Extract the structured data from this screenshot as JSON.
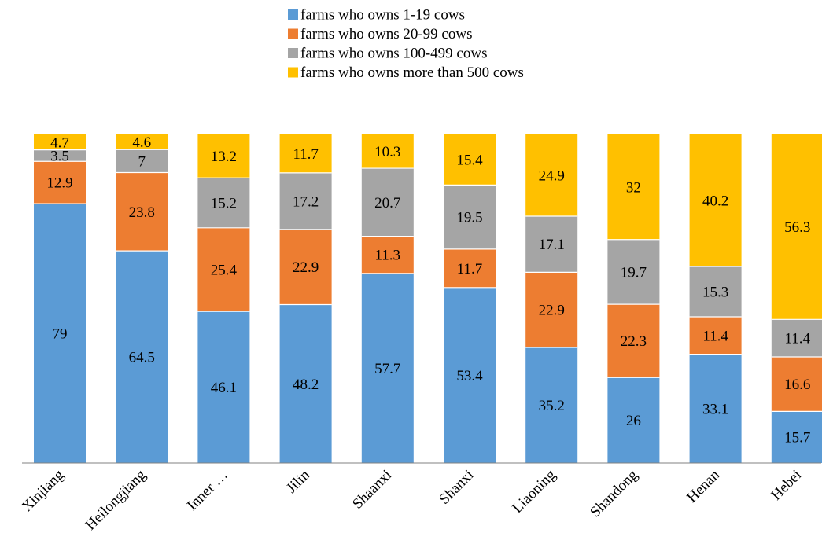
{
  "chart_data": {
    "type": "bar",
    "stacked": true,
    "normalized_percent": true,
    "title": "",
    "xlabel": "",
    "ylabel": "",
    "ylim": [
      0,
      100
    ],
    "grid": false,
    "legend_position": "top",
    "categories": [
      "Xinjiang",
      "Heilongjiang",
      "Inner …",
      "Jilin",
      "Shaanxi",
      "Shanxi",
      "Liaoning",
      "Shandong",
      "Henan",
      "Hebei"
    ],
    "series": [
      {
        "name": "farms who owns 1-19 cows",
        "color": "#5B9BD5",
        "values": [
          79,
          64.5,
          46.1,
          48.2,
          57.7,
          53.4,
          35.2,
          26,
          33.1,
          15.7
        ]
      },
      {
        "name": "farms who owns 20-99 cows",
        "color": "#ED7D31",
        "values": [
          12.9,
          23.8,
          25.4,
          22.9,
          11.3,
          11.7,
          22.9,
          22.3,
          11.4,
          16.6
        ]
      },
      {
        "name": "farms who owns 100-499 cows",
        "color": "#A5A5A5",
        "values": [
          3.5,
          7,
          15.2,
          17.2,
          20.7,
          19.5,
          17.1,
          19.7,
          15.3,
          11.4
        ]
      },
      {
        "name": "farms who owns more than 500 cows",
        "color": "#FFC000",
        "values": [
          4.7,
          4.6,
          13.2,
          11.7,
          10.3,
          15.4,
          24.9,
          32,
          40.2,
          56.3
        ]
      }
    ]
  }
}
